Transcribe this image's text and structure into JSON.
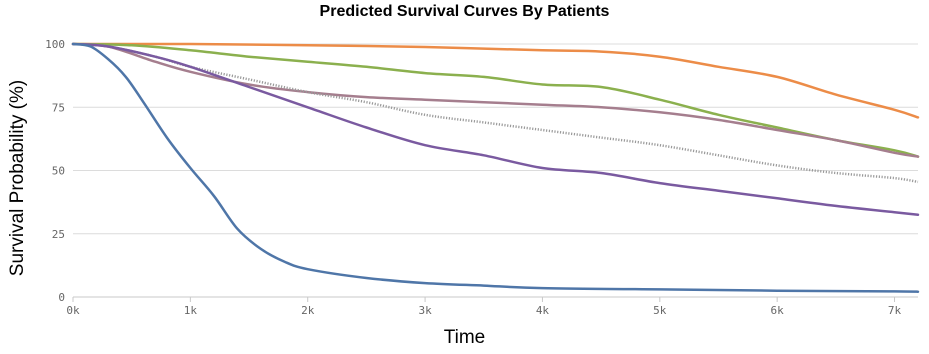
{
  "chart_data": {
    "type": "line",
    "title": "Predicted Survival Curves By Patients",
    "xlabel": "Time",
    "ylabel": "Survival Probability (%)",
    "xlim": [
      0,
      7200
    ],
    "ylim": [
      0,
      100
    ],
    "x_ticks": [
      {
        "value": 0,
        "label": "0k"
      },
      {
        "value": 1000,
        "label": "1k"
      },
      {
        "value": 2000,
        "label": "2k"
      },
      {
        "value": 3000,
        "label": "3k"
      },
      {
        "value": 4000,
        "label": "4k"
      },
      {
        "value": 5000,
        "label": "5k"
      },
      {
        "value": 6000,
        "label": "6k"
      },
      {
        "value": 7000,
        "label": "7k"
      }
    ],
    "y_ticks": [
      {
        "value": 0,
        "label": "0"
      },
      {
        "value": 25,
        "label": "25"
      },
      {
        "value": 50,
        "label": "50"
      },
      {
        "value": 75,
        "label": "75"
      },
      {
        "value": 100,
        "label": "100"
      }
    ],
    "grid": true,
    "legend": "none",
    "series": [
      {
        "color": "#ec8c48",
        "dashed": false,
        "x": [
          0,
          500,
          1000,
          2000,
          3000,
          4000,
          4500,
          5000,
          5500,
          6000,
          6500,
          7000,
          7200
        ],
        "y": [
          100,
          100,
          100,
          99.5,
          98.8,
          97.5,
          97,
          95,
          91,
          87,
          80,
          74,
          71
        ]
      },
      {
        "color": "#8bb04e",
        "dashed": false,
        "x": [
          0,
          500,
          1000,
          1500,
          2000,
          2500,
          3000,
          3500,
          4000,
          4500,
          5000,
          5500,
          6000,
          6500,
          7000,
          7200
        ],
        "y": [
          100,
          99.5,
          97.5,
          95,
          93,
          91,
          88.5,
          87,
          84,
          83,
          78,
          72,
          67,
          62,
          58,
          55.5
        ]
      },
      {
        "color": "#a57e8e",
        "dashed": false,
        "x": [
          0,
          300,
          700,
          1000,
          1500,
          2000,
          2500,
          3000,
          3500,
          4000,
          4500,
          5000,
          5500,
          6000,
          6500,
          7000,
          7200
        ],
        "y": [
          100,
          99,
          93,
          89,
          84,
          81,
          79,
          78,
          77,
          76,
          75,
          73,
          70,
          66,
          62,
          57,
          55.5
        ]
      },
      {
        "color": "#9a9a9a",
        "dashed": true,
        "x": [
          0,
          300,
          700,
          1000,
          1500,
          2000,
          2500,
          3000,
          3500,
          4000,
          4500,
          5000,
          5500,
          6000,
          6500,
          7000,
          7200
        ],
        "y": [
          100,
          99,
          95,
          91,
          86,
          81,
          77,
          72,
          69,
          66,
          63,
          60,
          56,
          52,
          49,
          47,
          45.5
        ]
      },
      {
        "color": "#7a5aa0",
        "dashed": false,
        "x": [
          0,
          300,
          700,
          1000,
          1500,
          2000,
          2500,
          3000,
          3500,
          4000,
          4500,
          5000,
          5500,
          6000,
          6500,
          7000,
          7200
        ],
        "y": [
          100,
          99,
          95,
          91,
          83,
          75,
          67,
          60,
          56,
          51,
          49,
          45,
          42,
          39,
          36,
          33.5,
          32.5
        ]
      },
      {
        "color": "#4f76a8",
        "dashed": false,
        "x": [
          0,
          150,
          300,
          450,
          600,
          800,
          1000,
          1200,
          1400,
          1600,
          1800,
          2000,
          2500,
          3000,
          3500,
          4000,
          5000,
          6000,
          7000,
          7200
        ],
        "y": [
          100,
          99,
          94,
          87,
          77,
          63,
          51,
          40,
          27,
          19,
          14,
          11,
          7.5,
          5.5,
          4.5,
          3.5,
          3,
          2.5,
          2.2,
          2.1
        ]
      }
    ]
  }
}
